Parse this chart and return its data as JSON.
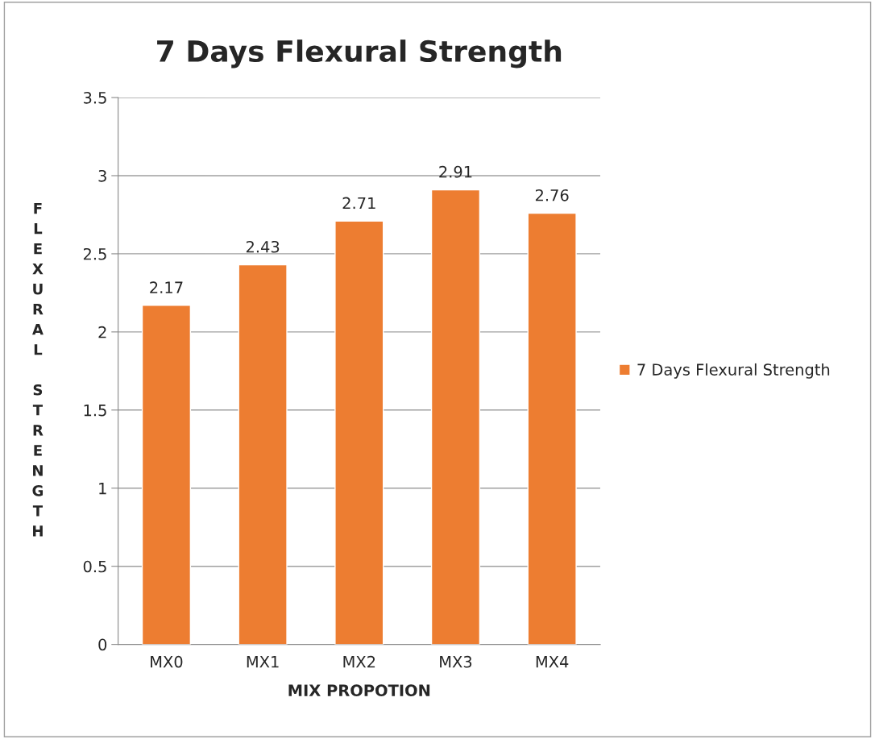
{
  "chart_data": {
    "type": "bar",
    "title": "7 Days Flexural Strength",
    "xlabel": "MIX PROPOTION",
    "ylabel": "FLEXURAL STRENGTH",
    "categories": [
      "MX0",
      "MX1",
      "MX2",
      "MX3",
      "MX4"
    ],
    "series": [
      {
        "name": "7 Days Flexural Strength",
        "color": "#ed7d31",
        "values": [
          2.17,
          2.43,
          2.71,
          2.91,
          2.76
        ]
      }
    ],
    "ylim": [
      0,
      3.5
    ],
    "yticks": [
      0,
      0.5,
      1,
      1.5,
      2,
      2.5,
      3,
      3.5
    ],
    "grid": "y",
    "legend": "right",
    "data_labels": true
  }
}
